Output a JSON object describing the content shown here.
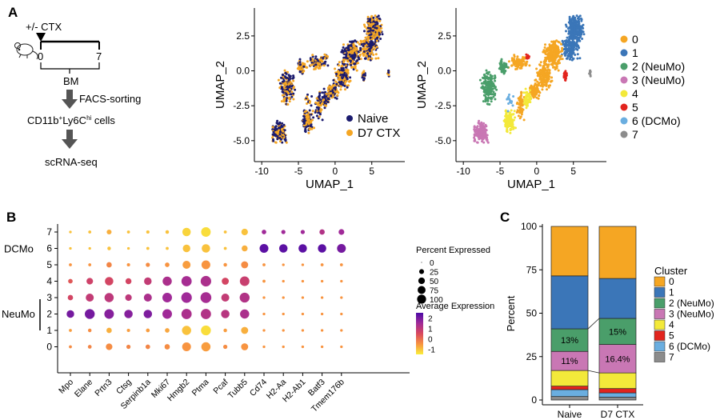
{
  "panels": {
    "A": "A",
    "B": "B",
    "C": "C"
  },
  "workflow": {
    "treatment": "+/- CTX",
    "day_start": "0",
    "day_end": "7",
    "tissue": "BM",
    "step1": "FACS-sorting",
    "cells_text": {
      "p1": "CD11b",
      "s1": "+",
      "p2": "Ly6C",
      "s2": "hi",
      "p3": " cells"
    },
    "step2": "scRNA-seq"
  },
  "chart_data": [
    {
      "type": "scatter",
      "panel": "A-left",
      "xlabel": "UMAP_1",
      "ylabel": "UMAP_2",
      "xticks": [
        "-10",
        "-5",
        "0",
        "5"
      ],
      "yticks": [
        "-5.0",
        "-2.5",
        "0.0",
        "2.5"
      ],
      "xlim": [
        -11,
        9.5
      ],
      "ylim": [
        -6.5,
        4.5
      ],
      "legend_position": "bottom-right",
      "series": [
        {
          "name": "Naive",
          "color": "#1b1b6e"
        },
        {
          "name": "D7 CTX",
          "color": "#f5a623"
        }
      ]
    },
    {
      "type": "scatter",
      "panel": "A-right",
      "xlabel": "UMAP_1",
      "ylabel": "UMAP_2",
      "xticks": [
        "-10",
        "-5",
        "0",
        "5"
      ],
      "yticks": [
        "-5.0",
        "-2.5",
        "0.0",
        "2.5"
      ],
      "xlim": [
        -11,
        9.5
      ],
      "ylim": [
        -6.5,
        4.5
      ],
      "legend_position": "right",
      "clusters": [
        {
          "name": "0",
          "color": "#f5a623",
          "center": [
            2.2,
            0.9
          ]
        },
        {
          "name": "1",
          "color": "#3b76b8",
          "center": [
            5.2,
            2.6
          ]
        },
        {
          "name": "2 (NeuMo)",
          "color": "#4a9e6a",
          "center": [
            -6.5,
            -1.2
          ]
        },
        {
          "name": "3 (NeuMo)",
          "color": "#c977b4",
          "center": [
            -7.6,
            -4.4
          ]
        },
        {
          "name": "4",
          "color": "#f3e93a",
          "center": [
            -3.7,
            -3.0
          ]
        },
        {
          "name": "5",
          "color": "#e2241e",
          "center": [
            -1.2,
            1.0
          ]
        },
        {
          "name": "6 (DCMo)",
          "color": "#6aaee0",
          "center": [
            -3.6,
            -2.3
          ]
        },
        {
          "name": "7",
          "color": "#8c8c8c",
          "center": [
            7.3,
            -0.2
          ]
        }
      ]
    },
    {
      "type": "dot",
      "panel": "B",
      "genes": [
        "Mpo",
        "Elane",
        "Prtn3",
        "Ctsg",
        "Serpinb1a",
        "Mki67",
        "Hmgb2",
        "Ptma",
        "Pcaf",
        "Tubb5",
        "Cd74",
        "H2-Aa",
        "H2-Ab1",
        "Batf3",
        "Tmem176b"
      ],
      "clusters": [
        "7",
        "6",
        "5",
        "4",
        "3",
        "2",
        "1",
        "0"
      ],
      "group_labels": {
        "DCMo": "DCMo",
        "NeuMo": "NeuMo"
      },
      "pct": [
        [
          2,
          3,
          12,
          3,
          4,
          5,
          45,
          60,
          3,
          25,
          10,
          8,
          8,
          15,
          18
        ],
        [
          2,
          2,
          5,
          2,
          3,
          3,
          35,
          45,
          3,
          20,
          50,
          45,
          45,
          45,
          50
        ],
        [
          3,
          3,
          15,
          4,
          8,
          10,
          40,
          50,
          5,
          30,
          3,
          2,
          2,
          3,
          3
        ],
        [
          10,
          25,
          45,
          20,
          35,
          55,
          70,
          75,
          30,
          60,
          3,
          2,
          2,
          2,
          2
        ],
        [
          15,
          40,
          55,
          25,
          40,
          60,
          75,
          80,
          40,
          65,
          2,
          2,
          2,
          2,
          2
        ],
        [
          35,
          65,
          60,
          45,
          45,
          60,
          70,
          70,
          45,
          55,
          2,
          2,
          2,
          2,
          2
        ],
        [
          3,
          5,
          15,
          4,
          6,
          10,
          55,
          65,
          5,
          30,
          2,
          2,
          2,
          2,
          2
        ],
        [
          3,
          6,
          25,
          8,
          10,
          15,
          50,
          55,
          8,
          30,
          2,
          2,
          2,
          2,
          2
        ]
      ],
      "avg": [
        [
          -1,
          -1,
          -0.8,
          -1,
          -1,
          -1,
          -1.2,
          -1.3,
          -1,
          -1,
          1.5,
          1.5,
          1.5,
          1.2,
          1.5
        ],
        [
          -1,
          -1,
          -1,
          -1,
          -1,
          -1,
          -1,
          -1,
          -1,
          -0.8,
          2.3,
          2.3,
          2.3,
          2.3,
          2.0
        ],
        [
          -0.5,
          -0.5,
          -0.3,
          -0.5,
          -0.4,
          -0.5,
          -0.6,
          -0.5,
          -0.5,
          -0.4,
          -0.5,
          -0.5,
          -0.5,
          -0.5,
          -0.5
        ],
        [
          0.3,
          0.7,
          0.6,
          0.6,
          0.9,
          1.3,
          1.4,
          1.3,
          0.6,
          0.8,
          -0.5,
          -0.5,
          -0.5,
          -0.5,
          -0.5
        ],
        [
          0.6,
          0.9,
          1.0,
          1.0,
          1.3,
          1.5,
          1.5,
          1.4,
          0.9,
          1.2,
          -0.5,
          -0.5,
          -0.5,
          -0.5,
          -0.5
        ],
        [
          2.0,
          2.0,
          1.8,
          1.8,
          1.9,
          1.5,
          1.3,
          1.2,
          1.1,
          1.3,
          -0.5,
          -0.5,
          -0.5,
          -0.5,
          -0.5
        ],
        [
          -0.6,
          -0.4,
          -0.8,
          -0.6,
          -0.6,
          -0.7,
          -1.0,
          -1.3,
          -0.6,
          -0.8,
          -0.5,
          -0.5,
          -0.5,
          -0.5,
          -0.5
        ],
        [
          -0.4,
          -0.3,
          -0.4,
          -0.3,
          -0.3,
          -0.4,
          -0.5,
          -0.6,
          -0.4,
          -0.5,
          -0.5,
          -0.5,
          -0.5,
          -0.5,
          -0.5
        ]
      ],
      "size_legend": {
        "title": "Percent Expressed",
        "values": [
          0,
          25,
          50,
          75,
          100
        ],
        "labels": [
          "0",
          "25",
          "50",
          "75",
          "100"
        ]
      },
      "color_legend": {
        "title": "Average Expression",
        "ticks": [
          "2",
          "1",
          "0",
          "-1"
        ],
        "tick_values": [
          2,
          1,
          0,
          -1
        ],
        "range": [
          -1.5,
          2.5
        ],
        "colors": [
          "#f9ef3a",
          "#f89440",
          "#d9485d",
          "#a02a98",
          "#4a0aa6"
        ]
      }
    },
    {
      "type": "bar",
      "stacked": true,
      "panel": "C",
      "ylabel": "Percent",
      "yticks": [
        "0",
        "25",
        "50",
        "75",
        "100"
      ],
      "ylim": [
        0,
        100
      ],
      "categories": [
        "Naive",
        "D7 CTX"
      ],
      "legend_title": "Cluster",
      "legend_position": "right",
      "series": [
        {
          "name": "0",
          "color": "#f5a623",
          "values": [
            28.5,
            30.0
          ]
        },
        {
          "name": "1",
          "color": "#3b76b8",
          "values": [
            30.5,
            23.0
          ]
        },
        {
          "name": "2 (NeuMo)",
          "color": "#4a9e6a",
          "values": [
            13.0,
            15.0
          ]
        },
        {
          "name": "3 (NeuMo)",
          "color": "#c977b4",
          "values": [
            11.0,
            16.4
          ]
        },
        {
          "name": "4",
          "color": "#f3e93a",
          "values": [
            9.0,
            9.0
          ]
        },
        {
          "name": "5",
          "color": "#e2241e",
          "values": [
            2.0,
            2.5
          ]
        },
        {
          "name": "6 (DCMo)",
          "color": "#6aaee0",
          "values": [
            4.0,
            2.5
          ]
        },
        {
          "name": "7",
          "color": "#8c8c8c",
          "values": [
            2.0,
            1.6
          ]
        }
      ],
      "annotations": {
        "naive_c2": "13%",
        "naive_c3": "11%",
        "ctx_c2": "15%",
        "ctx_c3": "16.4%"
      }
    }
  ]
}
